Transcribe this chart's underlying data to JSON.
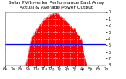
{
  "title1": "Solar PV/Inverter Performance East Array",
  "title2": "Actual & Average Power Output",
  "bg_color": "#ffffff",
  "plot_bg": "#ffffff",
  "bar_color": "#ff0000",
  "avg_line_color": "#0000ff",
  "grid_color": "#ffffff",
  "border_color": "#808080",
  "ylim": [
    0,
    8
  ],
  "xlim": [
    0,
    287
  ],
  "avg_line_y": 3.2,
  "title_fontsize": 4.2,
  "tick_fontsize": 3.5,
  "num_points": 288,
  "time_labels": [
    "6a",
    "7a",
    "8a",
    "9a",
    "10a",
    "11a",
    "12p",
    "1p",
    "2p",
    "3p",
    "4p",
    "5p",
    "6p",
    "7p"
  ],
  "y_labels_right": [
    "8",
    "7",
    "6",
    "5",
    "4",
    "3",
    "2",
    "1",
    "0"
  ],
  "n_vgrid": 14,
  "n_hgrid": 8
}
